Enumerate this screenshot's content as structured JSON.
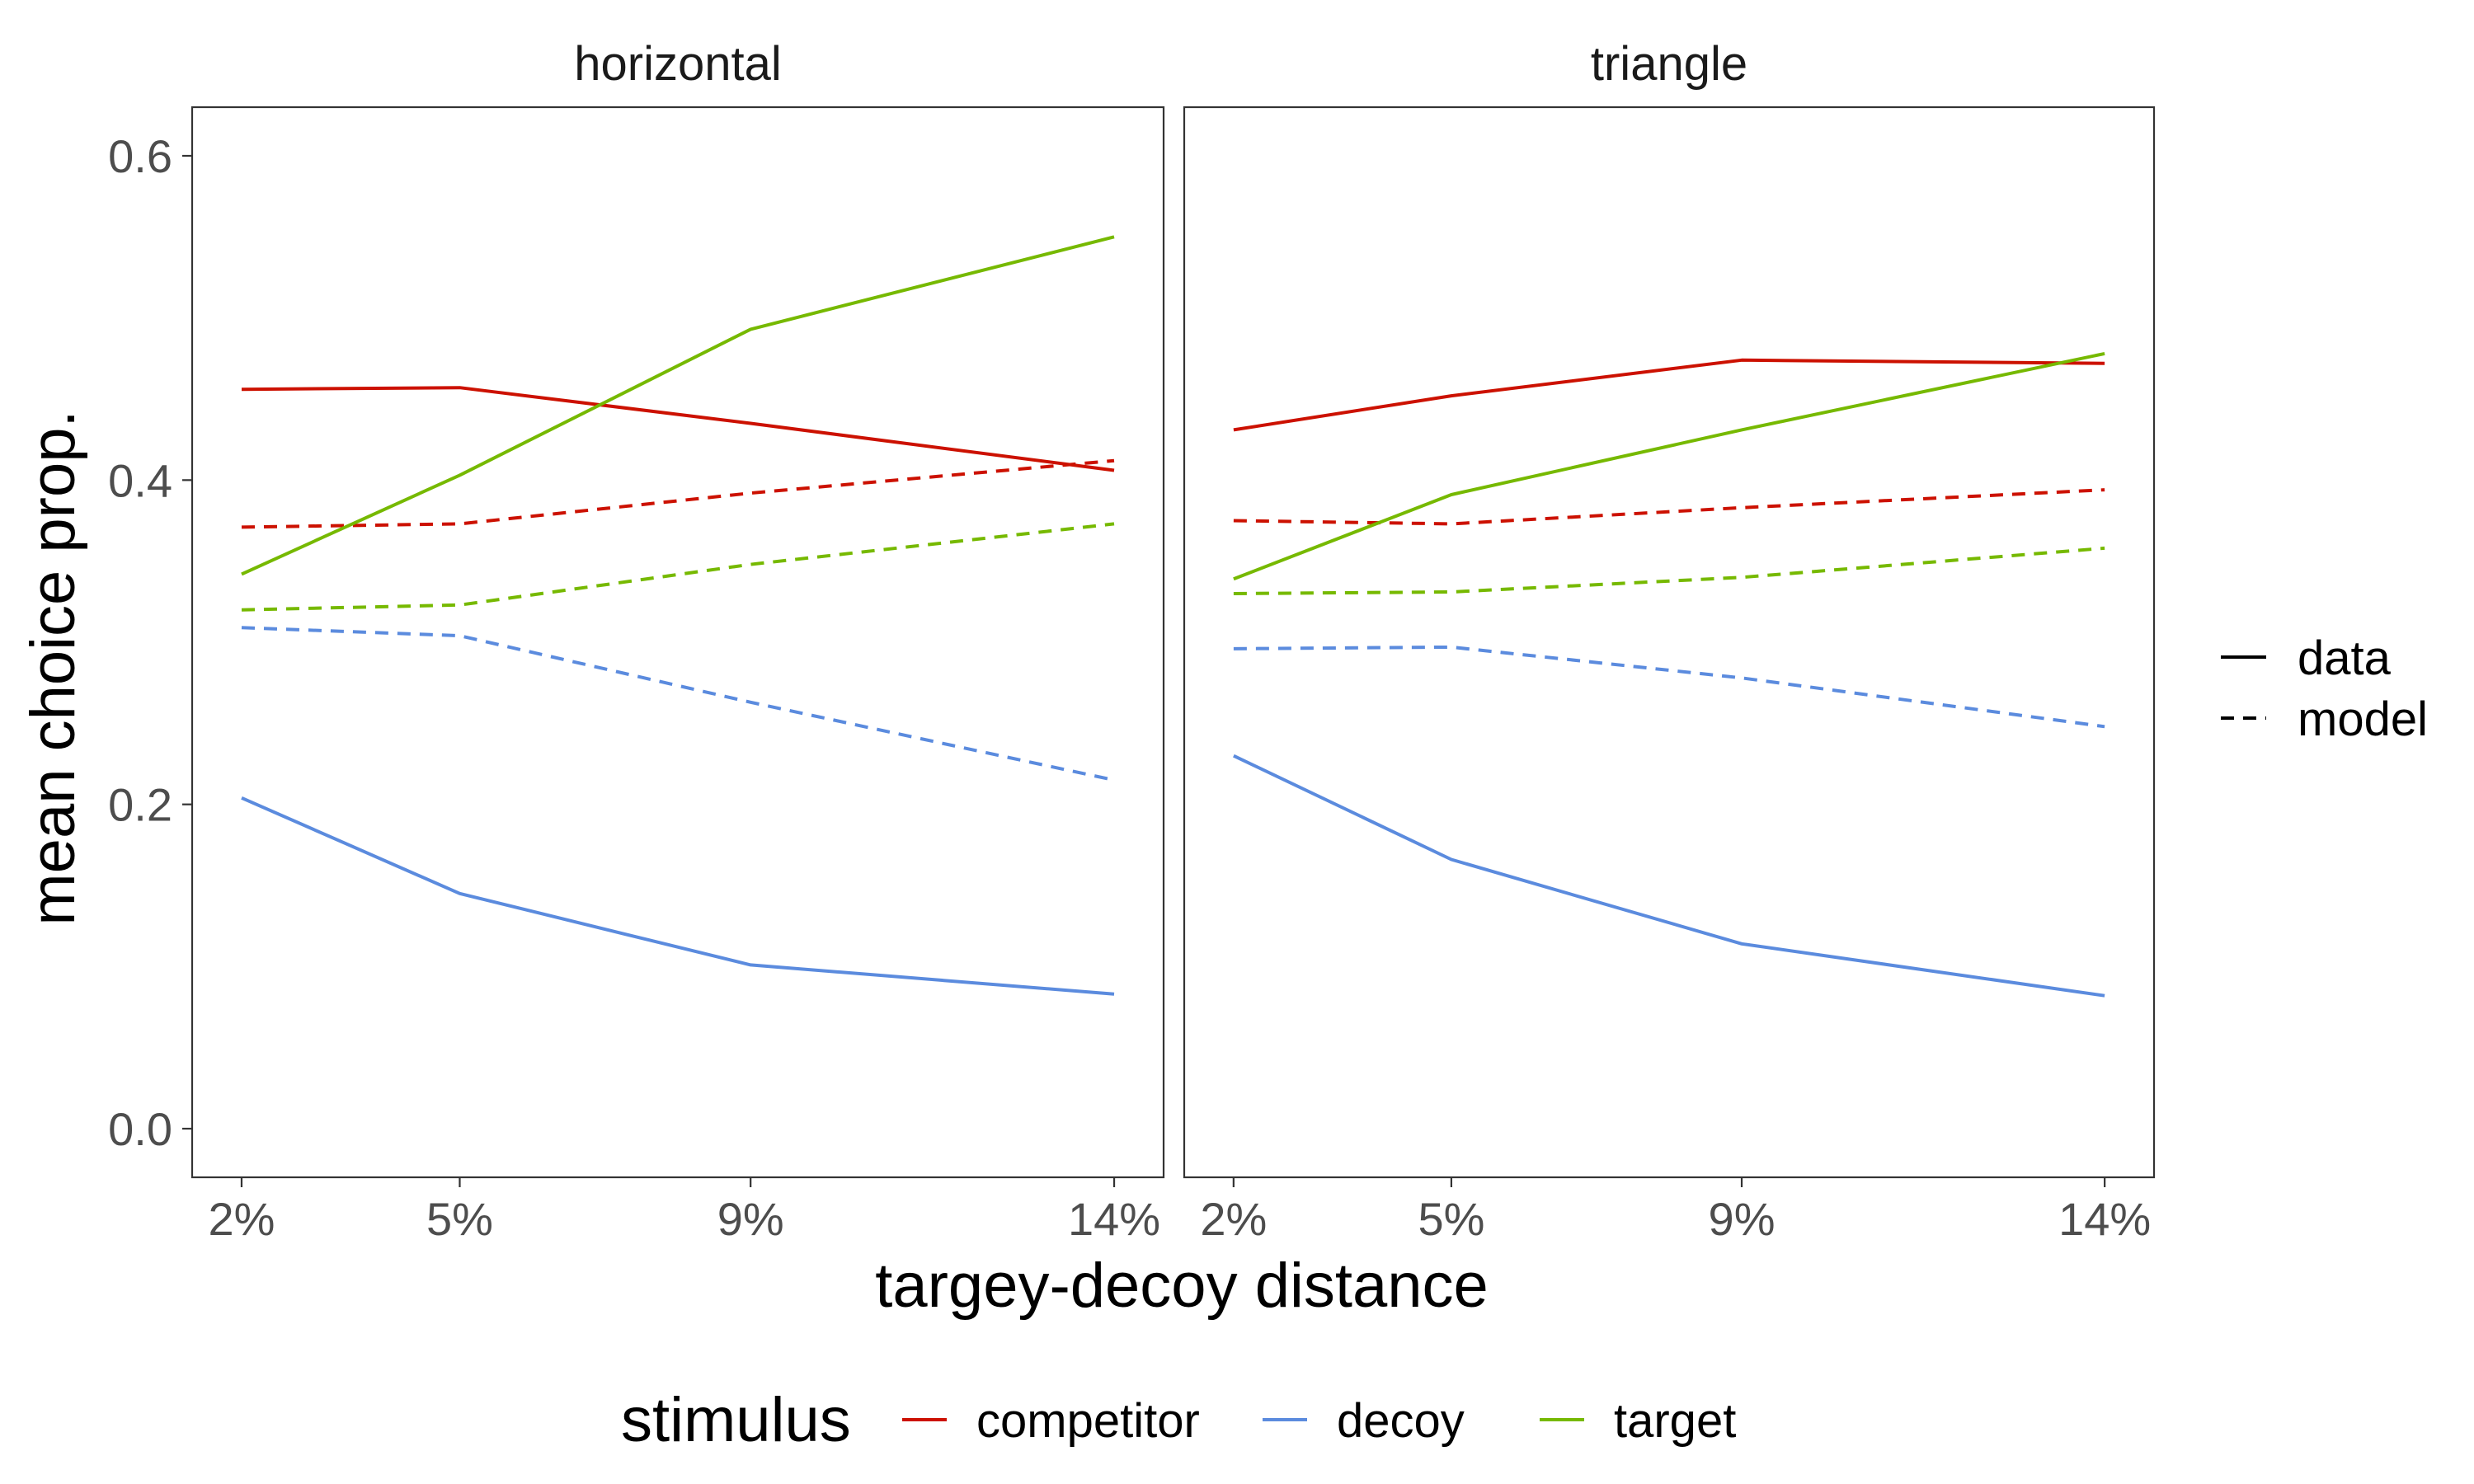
{
  "chart_data": {
    "type": "line",
    "xlabel": "targey-decoy distance",
    "ylabel": "mean choice prop.",
    "x": [
      "2%",
      "5%",
      "9%",
      "14%"
    ],
    "x_numeric": [
      2,
      5,
      9,
      14
    ],
    "ylim": [
      -0.03,
      0.63
    ],
    "yticks": [
      0.0,
      0.2,
      0.4,
      0.6
    ],
    "ytick_labels": [
      "0.0",
      "0.2",
      "0.4",
      "0.6"
    ],
    "grid": false,
    "legend": {
      "linetype": {
        "position": "right",
        "entries": [
          {
            "label": "data",
            "dash": "solid"
          },
          {
            "label": "model",
            "dash": "dashed"
          }
        ]
      },
      "stimulus": {
        "position": "bottom",
        "title": "stimulus",
        "entries": [
          {
            "label": "competitor",
            "color": "#CC1100"
          },
          {
            "label": "decoy",
            "color": "#5B8BDE"
          },
          {
            "label": "target",
            "color": "#76B900"
          }
        ]
      }
    },
    "facets": [
      {
        "title": "horizontal",
        "series": [
          {
            "stimulus": "competitor",
            "type": "data",
            "values": [
              0.456,
              0.457,
              0.435,
              0.406
            ]
          },
          {
            "stimulus": "competitor",
            "type": "model",
            "values": [
              0.371,
              0.373,
              0.392,
              0.412
            ]
          },
          {
            "stimulus": "decoy",
            "type": "data",
            "values": [
              0.204,
              0.145,
              0.101,
              0.083
            ]
          },
          {
            "stimulus": "decoy",
            "type": "model",
            "values": [
              0.309,
              0.304,
              0.263,
              0.215
            ]
          },
          {
            "stimulus": "target",
            "type": "data",
            "values": [
              0.342,
              0.403,
              0.493,
              0.55
            ]
          },
          {
            "stimulus": "target",
            "type": "model",
            "values": [
              0.32,
              0.323,
              0.348,
              0.373
            ]
          }
        ]
      },
      {
        "title": "triangle",
        "series": [
          {
            "stimulus": "competitor",
            "type": "data",
            "values": [
              0.431,
              0.452,
              0.474,
              0.472
            ]
          },
          {
            "stimulus": "competitor",
            "type": "model",
            "values": [
              0.375,
              0.373,
              0.383,
              0.394
            ]
          },
          {
            "stimulus": "decoy",
            "type": "data",
            "values": [
              0.23,
              0.166,
              0.114,
              0.082
            ]
          },
          {
            "stimulus": "decoy",
            "type": "model",
            "values": [
              0.296,
              0.297,
              0.278,
              0.248
            ]
          },
          {
            "stimulus": "target",
            "type": "data",
            "values": [
              0.339,
              0.391,
              0.431,
              0.478
            ]
          },
          {
            "stimulus": "target",
            "type": "model",
            "values": [
              0.33,
              0.331,
              0.34,
              0.358
            ]
          }
        ]
      }
    ]
  }
}
